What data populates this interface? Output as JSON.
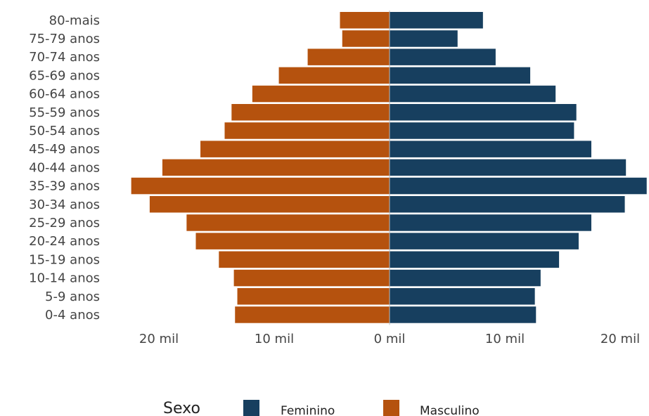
{
  "chart_data": {
    "type": "bar",
    "orientation": "horizontal",
    "layout": "population-pyramid",
    "categories": [
      "80-mais",
      "75-79 anos",
      "70-74 anos",
      "65-69 anos",
      "60-64 anos",
      "55-59 anos",
      "50-54 anos",
      "45-49 anos",
      "40-44 anos",
      "35-39 anos",
      "30-34 anos",
      "25-29 anos",
      "20-24 anos",
      "15-19 anos",
      "10-14 anos",
      "5-9 anos",
      "0-4 anos"
    ],
    "series": [
      {
        "name": "Feminino",
        "side": "right",
        "color": "#173f5f",
        "values": [
          8100,
          5900,
          9200,
          12200,
          14400,
          16200,
          16000,
          17500,
          20500,
          22300,
          20400,
          17500,
          16400,
          14700,
          13100,
          12600,
          12700
        ]
      },
      {
        "name": "Masculino",
        "side": "left",
        "color": "#b5520e",
        "values": [
          4300,
          4100,
          7100,
          9600,
          11900,
          13700,
          14300,
          16400,
          19700,
          22400,
          20800,
          17600,
          16800,
          14800,
          13500,
          13200,
          13400
        ]
      }
    ],
    "xlim": [
      -22500,
      22500
    ],
    "xticks": [
      {
        "value": -20000,
        "label": "20 mil"
      },
      {
        "value": -10000,
        "label": "10 mil"
      },
      {
        "value": 0,
        "label": "0 mil"
      },
      {
        "value": 10000,
        "label": "10 mil"
      },
      {
        "value": 20000,
        "label": "20 mil"
      }
    ],
    "legend": {
      "title": "Sexo",
      "placement": "bottom",
      "items": [
        {
          "label": "Feminino",
          "color": "#173f5f"
        },
        {
          "label": "Masculino",
          "color": "#b5520e"
        }
      ]
    },
    "center_line_color": "#bbbbbb"
  }
}
